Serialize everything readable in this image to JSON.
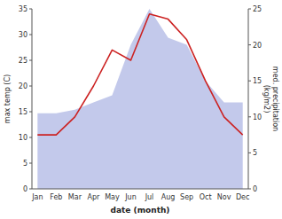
{
  "chart_data": {
    "type": "line",
    "xlabel": "date (month)",
    "ylabel": "max temp (C)",
    "y2label": "med. precipitation\n(kg/m2)",
    "categories": [
      "Jan",
      "Feb",
      "Mar",
      "Apr",
      "May",
      "Jun",
      "Jul",
      "Aug",
      "Sep",
      "Oct",
      "Nov",
      "Dec"
    ],
    "series": [
      {
        "type": "area",
        "axis": "y2",
        "color": "#b8c0e8",
        "values": [
          10.5,
          10.5,
          11.0,
          12.0,
          13.0,
          20.0,
          25.0,
          21.0,
          20.0,
          15.0,
          12.0,
          12.0
        ]
      },
      {
        "type": "line",
        "color": "#cc2222",
        "values": [
          10.5,
          10.5,
          14.0,
          20.0,
          27.0,
          25.0,
          34.0,
          33.0,
          29.0,
          21.0,
          14.0,
          10.5
        ]
      }
    ],
    "ylim": [
      0,
      35
    ],
    "yticks": [
      0,
      5,
      10,
      15,
      20,
      25,
      30,
      35
    ],
    "y2lim": [
      0,
      25
    ],
    "y2ticks": [
      0,
      5,
      10,
      15,
      20,
      25
    ],
    "grid": false
  }
}
